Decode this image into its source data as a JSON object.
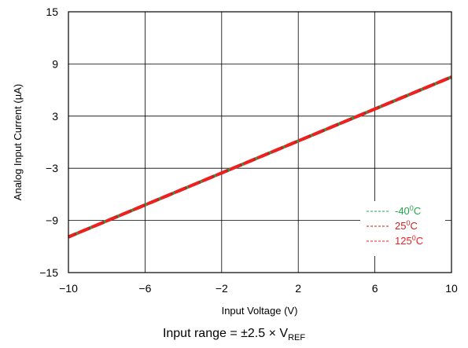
{
  "chart_data": {
    "type": "line",
    "title": "",
    "xlabel": "Input Voltage (V)",
    "ylabel": "Analog Input Current (µA)",
    "xlim": [
      -10,
      10
    ],
    "ylim": [
      -15,
      15
    ],
    "xticks": [
      -10,
      -6,
      -2,
      2,
      6,
      10
    ],
    "yticks": [
      -15,
      -9,
      -3,
      3,
      9,
      15
    ],
    "xtick_labels": [
      "−10",
      "−6",
      "−2",
      "2",
      "6",
      "10"
    ],
    "ytick_labels": [
      "−15",
      "−9",
      "−3",
      "3",
      "9",
      "15"
    ],
    "grid": true,
    "legend_position": "bottom-right",
    "series": [
      {
        "name": "-40",
        "name_sup": "0",
        "name_suffix": "C",
        "color": "#22a64a",
        "x": [
          -10,
          10
        ],
        "y": [
          -10.9,
          7.5
        ]
      },
      {
        "name": "25",
        "name_sup": "0",
        "name_suffix": "C",
        "color": "#cc1f1f",
        "x": [
          -10,
          10
        ],
        "y": [
          -10.9,
          7.5
        ]
      },
      {
        "name": "125",
        "name_sup": "0",
        "name_suffix": "C",
        "color": "#ee2020",
        "x": [
          -10,
          10
        ],
        "y": [
          -10.9,
          7.5
        ]
      }
    ]
  },
  "caption": {
    "prefix": "Input range = ±2.5 × V",
    "subscript": "REF"
  }
}
